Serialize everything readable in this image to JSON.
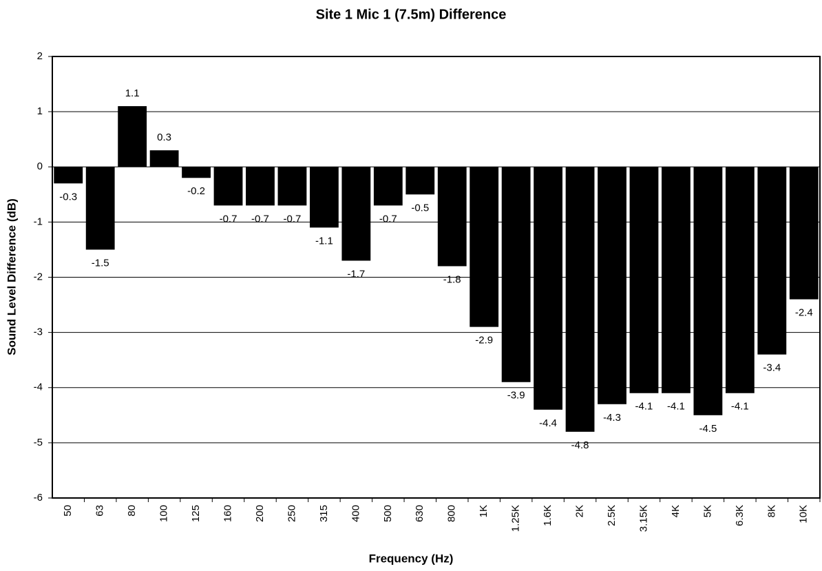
{
  "chart_data": {
    "type": "bar",
    "title": "Site 1 Mic 1 (7.5m) Difference",
    "x_label": "Frequency (Hz)",
    "y_label": "Sound Level Difference (dB)",
    "categories": [
      "50",
      "63",
      "80",
      "100",
      "125",
      "160",
      "200",
      "250",
      "315",
      "400",
      "500",
      "630",
      "800",
      "1K",
      "1.25K",
      "1.6K",
      "2K",
      "2.5K",
      "3.15K",
      "4K",
      "5K",
      "6.3K",
      "8K",
      "10K"
    ],
    "values": [
      -0.3,
      -1.5,
      1.1,
      0.3,
      -0.2,
      -0.7,
      -0.7,
      -0.7,
      -1.1,
      -1.7,
      -0.7,
      -0.5,
      -1.8,
      -2.9,
      -3.9,
      -4.4,
      -4.8,
      -4.3,
      -4.1,
      -4.1,
      -4.5,
      -4.1,
      -3.4,
      -2.4
    ],
    "color": "#000000",
    "ylim": [
      -6,
      2
    ],
    "yticks": [
      -6,
      -5,
      -4,
      -3,
      -2,
      -1,
      0,
      1,
      2
    ],
    "grid": true
  }
}
